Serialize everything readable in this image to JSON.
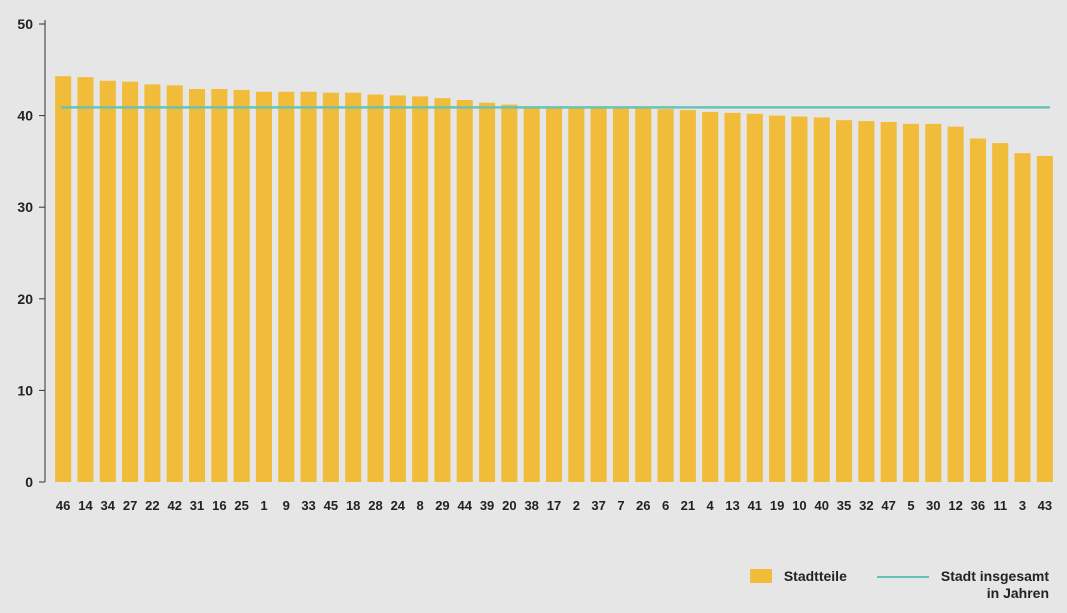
{
  "colors": {
    "bar": "#f0bc3a",
    "line": "#69c3b5",
    "axis": "#333333",
    "background": "#e6e6e6"
  },
  "chart_data": {
    "type": "bar",
    "categories": [
      "46",
      "14",
      "34",
      "27",
      "22",
      "42",
      "31",
      "16",
      "25",
      "1",
      "9",
      "33",
      "45",
      "18",
      "28",
      "24",
      "8",
      "29",
      "44",
      "39",
      "20",
      "38",
      "17",
      "2",
      "37",
      "7",
      "26",
      "6",
      "21",
      "4",
      "13",
      "41",
      "19",
      "10",
      "40",
      "35",
      "32",
      "47",
      "5",
      "30",
      "12",
      "36",
      "11",
      "3",
      "43"
    ],
    "series": [
      {
        "name": "Stadtteile",
        "values": [
          44.3,
          44.2,
          43.8,
          43.7,
          43.4,
          43.3,
          42.9,
          42.9,
          42.8,
          42.6,
          42.6,
          42.6,
          42.5,
          42.5,
          42.3,
          42.2,
          42.1,
          41.9,
          41.7,
          41.4,
          41.2,
          41.0,
          40.9,
          40.9,
          40.9,
          40.9,
          40.9,
          40.7,
          40.6,
          40.4,
          40.3,
          40.2,
          40.0,
          39.9,
          39.8,
          39.5,
          39.4,
          39.3,
          39.1,
          39.1,
          38.8,
          37.5,
          37.0,
          35.9,
          35.6
        ]
      }
    ],
    "reference_line": {
      "name": "Stadt insgesamt",
      "value": 40.9
    },
    "ylim": [
      0,
      50
    ],
    "yticks": [
      "0",
      "10",
      "20",
      "30",
      "40",
      "50"
    ],
    "grid": false,
    "legend": {
      "position": "bottom-right",
      "bar_label": "Stadtteile",
      "line_label_1": "Stadt insgesamt",
      "line_label_2": "in Jahren"
    }
  }
}
